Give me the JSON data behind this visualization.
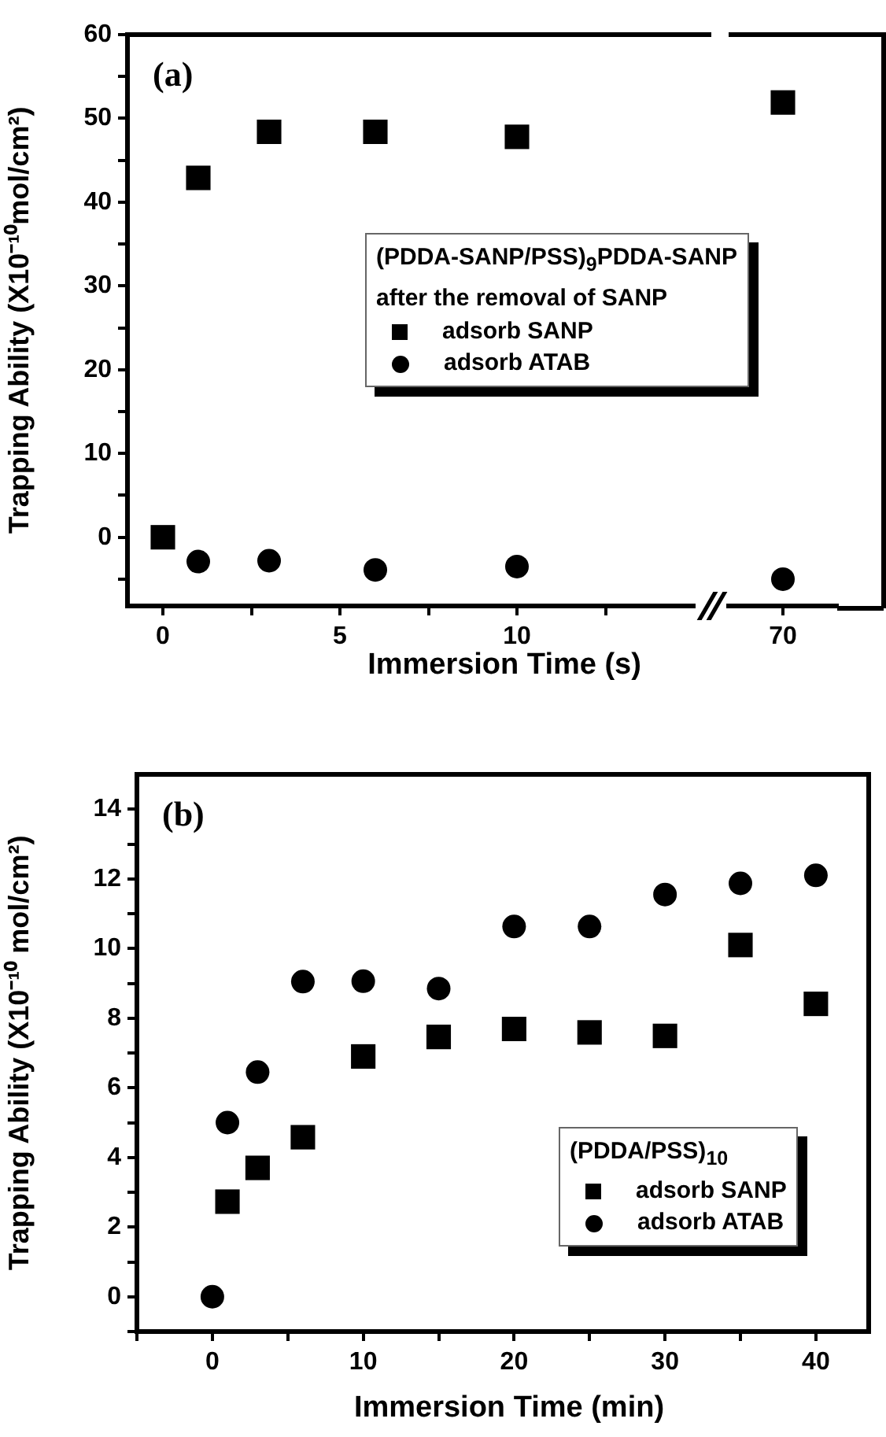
{
  "chart_data": [
    {
      "type": "scatter",
      "annotations": [
        "(a)"
      ],
      "xlabel": "Immersion Time (s)",
      "ylabel": "Trapping Ability (X10⁻¹⁰mol/cm²)",
      "legend_title": "(PDDA-SANP/PSS)$_{9}$PDDA-SANP\nafter the removal of SANP",
      "legend": "right",
      "tick_labels": true,
      "x": [
        0,
        1,
        3,
        6,
        10
      ],
      "series": [
        {
          "name": "adsorb SANP",
          "color": "#000000",
          "marker": "square",
          "values": [
            0,
            42.9,
            48.4,
            48.4,
            47.8
          ]
        },
        {
          "name": "adsorb ATAB",
          "color": "#000000",
          "marker": "circle",
          "values": [
            null,
            -2.9,
            -2.8,
            -3.9,
            -3.5
          ]
        }
      ],
      "xlim": [
        -1,
        15
      ],
      "xticks": [
        0,
        {
          "value": 2.5,
          "label": null
        },
        5,
        {
          "value": 7.5,
          "label": null
        },
        10,
        {
          "value": 12.5,
          "label": null
        }
      ],
      "ylim": [
        -8.2,
        60
      ],
      "yticks": [
        {
          "value": -5,
          "label": null
        },
        0,
        {
          "value": 5,
          "label": null
        },
        10,
        {
          "value": 15,
          "label": null
        },
        20,
        {
          "value": 25,
          "label": null
        },
        30,
        {
          "value": 35,
          "label": null
        },
        40,
        {
          "value": 45,
          "label": null
        },
        50,
        {
          "value": 55,
          "label": null
        },
        60
      ]
    },
    {
      "type": "scatter",
      "tick_labels": "x",
      "categories": [
        "70"
      ],
      "series": [
        {
          "color": "#000000",
          "marker": "square",
          "values": [
            51.9
          ]
        },
        {
          "color": "#000000",
          "marker": "circle",
          "values": [
            -5.0
          ]
        }
      ],
      "ylim": [
        -8.2,
        60
      ]
    },
    {
      "type": "scatter",
      "annotations": [
        "(b)"
      ],
      "xlabel": "Immersion Time (min)",
      "ylabel": "Trapping Ability (X10⁻¹⁰ mol/cm²)",
      "legend_title": "(PDDA/PSS)$_{10}$",
      "legend": "bottom right",
      "x": [
        0,
        1,
        3,
        6,
        10,
        15,
        20,
        25,
        30,
        35,
        40
      ],
      "series": [
        {
          "name": "adsorb SANP",
          "color": "#000000",
          "marker": "square",
          "values": [
            null,
            2.73,
            3.7,
            4.58,
            6.9,
            7.46,
            7.69,
            7.59,
            7.49,
            10.1,
            8.41
          ]
        },
        {
          "name": "adsorb ATAB",
          "color": "#000000",
          "marker": "circle",
          "values": [
            0,
            5.0,
            6.45,
            9.05,
            9.06,
            8.85,
            10.63,
            10.63,
            11.55,
            11.87,
            12.1
          ]
        }
      ],
      "xlim": [
        -5,
        43.5
      ],
      "xticks": [
        {
          "value": -5,
          "label": null
        },
        0,
        {
          "value": 5,
          "label": null
        },
        10,
        {
          "value": 15,
          "label": null
        },
        20,
        {
          "value": 25,
          "label": null
        },
        30,
        {
          "value": 35,
          "label": null
        },
        40
      ],
      "ylim": [
        -1,
        15
      ],
      "yticks": [
        {
          "value": -1,
          "label": null
        },
        0,
        {
          "value": 1,
          "label": null
        },
        2,
        {
          "value": 3,
          "label": null
        },
        4,
        {
          "value": 5,
          "label": null
        },
        6,
        {
          "value": 7,
          "label": null
        },
        8,
        {
          "value": 9,
          "label": null
        },
        10,
        {
          "value": 11,
          "label": null
        },
        12,
        {
          "value": 13,
          "label": null
        },
        14
      ]
    }
  ]
}
